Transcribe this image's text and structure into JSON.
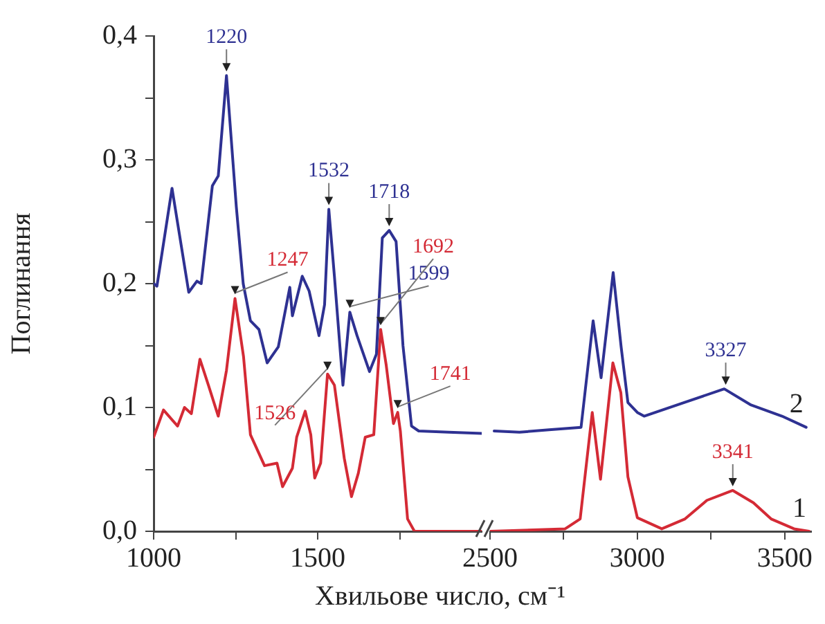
{
  "chart_data": [
    {
      "type": "line",
      "ylabel": "Поглинання",
      "xlabel": "Хвильове число, см⁻¹",
      "xlim": [
        1000,
        2000
      ],
      "xticks": [
        1000,
        {
          "value": 1250,
          "label": null
        },
        1500,
        {
          "value": 1750,
          "label": null
        }
      ],
      "ylim": [
        0,
        0.4
      ],
      "yticks": [
        {
          "value": 0,
          "label": "0,0"
        },
        {
          "value": 0.05,
          "label": null
        },
        {
          "value": 0.1,
          "label": "0,1"
        },
        {
          "value": 0.15,
          "label": null
        },
        {
          "value": 0.2,
          "label": "0,2"
        },
        {
          "value": 0.25,
          "label": null
        },
        {
          "value": 0.3,
          "label": "0,3"
        },
        {
          "value": 0.35,
          "label": null
        },
        {
          "value": 0.4,
          "label": "0,4"
        }
      ],
      "legend": false,
      "marker": "none",
      "series": [
        {
          "color": "#2e3192",
          "x": [
            1000,
            1010,
            1056,
            1107,
            1132,
            1145,
            1179,
            1197,
            1222,
            1252,
            1273,
            1295,
            1321,
            1346,
            1380,
            1415,
            1423,
            1453,
            1474,
            1504,
            1521,
            1534,
            1551,
            1577,
            1598,
            1620,
            1658,
            1679,
            1697,
            1718,
            1739,
            1760,
            1786,
            1808,
            1900,
            2000
          ],
          "values": [
            0.2,
            0.198,
            0.277,
            0.193,
            0.202,
            0.2,
            0.279,
            0.287,
            0.368,
            0.262,
            0.2,
            0.17,
            0.163,
            0.136,
            0.149,
            0.197,
            0.174,
            0.206,
            0.194,
            0.158,
            0.183,
            0.26,
            0.206,
            0.118,
            0.177,
            0.158,
            0.129,
            0.143,
            0.237,
            0.243,
            0.234,
            0.15,
            0.085,
            0.081,
            0.08,
            0.079
          ]
        },
        {
          "color": "#d42a35",
          "x": [
            1000,
            1030,
            1073,
            1094,
            1115,
            1141,
            1167,
            1197,
            1222,
            1248,
            1274,
            1295,
            1338,
            1376,
            1393,
            1423,
            1436,
            1462,
            1479,
            1491,
            1509,
            1530,
            1551,
            1581,
            1603,
            1624,
            1645,
            1671,
            1692,
            1709,
            1731,
            1744,
            1752,
            1774,
            1795,
            2000
          ],
          "values": [
            0.076,
            0.098,
            0.085,
            0.1,
            0.095,
            0.139,
            0.118,
            0.093,
            0.13,
            0.188,
            0.141,
            0.078,
            0.053,
            0.055,
            0.036,
            0.051,
            0.076,
            0.097,
            0.078,
            0.043,
            0.055,
            0.127,
            0.118,
            0.059,
            0.028,
            0.047,
            0.076,
            0.078,
            0.163,
            0.134,
            0.087,
            0.096,
            0.081,
            0.01,
            0.0,
            0.0
          ]
        }
      ],
      "annotations": [
        {
          "text": "1220",
          "x": 1222,
          "y": 0.368
        },
        {
          "text": "1247",
          "x": 1248,
          "y": 0.188
        },
        {
          "text": "1526",
          "x": 1530,
          "y": 0.127
        },
        {
          "text": "1532",
          "x": 1534,
          "y": 0.26
        },
        {
          "text": "1599",
          "x": 1598,
          "y": 0.177
        },
        {
          "text": "1718",
          "x": 1718,
          "y": 0.243
        },
        {
          "text": "1692",
          "x": 1692,
          "y": 0.163
        },
        {
          "text": "1741",
          "x": 1744,
          "y": 0.096
        }
      ]
    },
    {
      "type": "line",
      "xlim": [
        2500,
        3590
      ],
      "xticks": [
        2500,
        {
          "value": 2750,
          "label": null
        },
        3000,
        {
          "value": 3250,
          "label": null
        },
        3500
      ],
      "ylim": [
        0,
        0.4
      ],
      "tick_labels": "x",
      "legend": false,
      "marker": "none",
      "series": [
        {
          "name": "2",
          "color": "#2e3192",
          "x": [
            2514,
            2600,
            2700,
            2809,
            2850,
            2877,
            2918,
            2945,
            2968,
            3000,
            3023,
            3159,
            3295,
            3386,
            3491,
            3573
          ],
          "values": [
            0.081,
            0.08,
            0.082,
            0.084,
            0.17,
            0.124,
            0.209,
            0.149,
            0.104,
            0.096,
            0.093,
            0.104,
            0.115,
            0.102,
            0.093,
            0.084
          ]
        },
        {
          "name": "1",
          "color": "#d42a35",
          "x": [
            2500,
            2755,
            2806,
            2847,
            2875,
            2917,
            2944,
            2968,
            3000,
            3083,
            3162,
            3236,
            3324,
            3394,
            3454,
            3532,
            3583
          ],
          "values": [
            0.0,
            0.002,
            0.01,
            0.096,
            0.042,
            0.136,
            0.112,
            0.044,
            0.011,
            0.002,
            0.01,
            0.025,
            0.033,
            0.023,
            0.01,
            0.002,
            0.0
          ]
        }
      ],
      "annotations": [
        {
          "text": "3327",
          "x": 3300,
          "y": 0.115
        },
        {
          "text": "3341",
          "x": 3324,
          "y": 0.033
        }
      ]
    }
  ]
}
